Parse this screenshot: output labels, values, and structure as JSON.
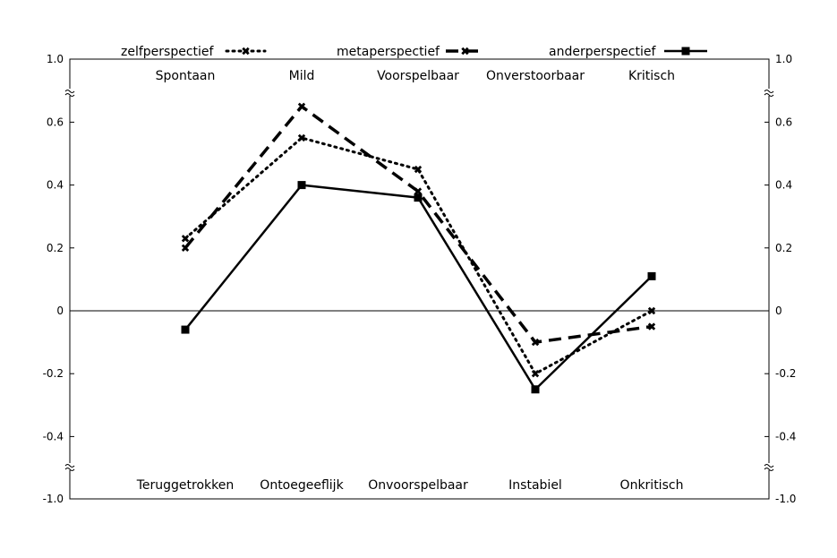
{
  "chart_data": {
    "type": "line",
    "title": "",
    "xlabel": "",
    "ylabel": "",
    "ylim": [
      -1.0,
      1.0
    ],
    "y_tick_labels": [
      "1.0",
      "0.6",
      "0.4",
      "0.2",
      "0",
      "-0.2",
      "-0.4",
      "-1.0"
    ],
    "y_ticks": [
      1.0,
      0.6,
      0.4,
      0.2,
      0,
      -0.2,
      -0.4,
      -1.0
    ],
    "axis_breaks": [
      0.7,
      -0.5
    ],
    "grid": false,
    "legend_position": "top",
    "top_labels": [
      "Spontaan",
      "Mild",
      "Voorspelbaar",
      "Onverstoorbaar",
      "Kritisch"
    ],
    "bottom_labels": [
      "Teruggetrokken",
      "Ontoegeeflijk",
      "Onvoorspelbaar",
      "Instabiel",
      "Onkritisch"
    ],
    "series": [
      {
        "name": "zelfperspectief",
        "values": [
          0.23,
          0.55,
          0.45,
          -0.2,
          0.0
        ],
        "style": "dotted",
        "marker": "x"
      },
      {
        "name": "metaperspectief",
        "values": [
          0.2,
          0.65,
          0.38,
          -0.1,
          -0.05
        ],
        "style": "dashed",
        "marker": "x"
      },
      {
        "name": "anderperspectief",
        "values": [
          -0.06,
          0.4,
          0.36,
          -0.25,
          0.11
        ],
        "style": "solid",
        "marker": "square"
      }
    ]
  }
}
